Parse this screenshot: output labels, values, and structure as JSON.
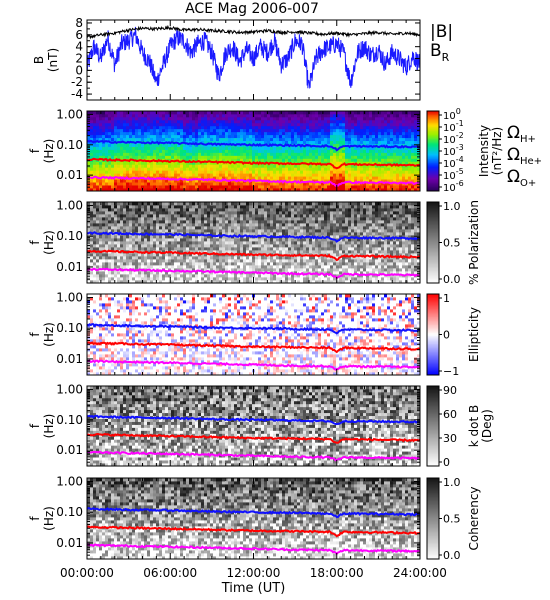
{
  "title": "ACE Mag 2006-007",
  "colors": {
    "B_total": "#000000",
    "B_R": "#1a1aff",
    "H": "#1010ff",
    "He": "#ff0000",
    "O": "#ff00ff"
  },
  "chart_data": {
    "type": "line",
    "title": "ACE Mag 2006-007",
    "x_label": "Time (UT)",
    "x_ticks": [
      "00:00:00",
      "06:00:00",
      "12:00:00",
      "18:00:00",
      "24:00:00"
    ],
    "x_range": [
      0,
      24
    ],
    "panels": [
      {
        "id": "field",
        "type": "line",
        "ylabel": [
          "B",
          "(nT)"
        ],
        "y_ticks": [
          "8",
          "6",
          "4",
          "2",
          "0",
          "-2",
          "-4"
        ],
        "ylim": [
          -5,
          8.5
        ],
        "legend": [
          "|B|",
          "B"
        ],
        "legend_sub": "R",
        "series": [
          {
            "name": "|B|",
            "points": [
              [
                0,
                5.6
              ],
              [
                1,
                6.0
              ],
              [
                2,
                6.3
              ],
              [
                3,
                6.8
              ],
              [
                4,
                7.1
              ],
              [
                5,
                7.0
              ],
              [
                6,
                7.2
              ],
              [
                7,
                6.8
              ],
              [
                8,
                6.9
              ],
              [
                9,
                6.7
              ],
              [
                10,
                6.6
              ],
              [
                11,
                6.4
              ],
              [
                12,
                6.5
              ],
              [
                13,
                6.7
              ],
              [
                14,
                6.4
              ],
              [
                15,
                6.5
              ],
              [
                16,
                6.3
              ],
              [
                17,
                6.1
              ],
              [
                18,
                6.3
              ],
              [
                19,
                6.0
              ],
              [
                20,
                6.2
              ],
              [
                21,
                6.4
              ],
              [
                22,
                6.1
              ],
              [
                23,
                6.3
              ],
              [
                24,
                6.0
              ]
            ]
          },
          {
            "name": "B_R",
            "points": [
              [
                0,
                0.5
              ],
              [
                0.5,
                4.0
              ],
              [
                1,
                2.0
              ],
              [
                1.5,
                5.5
              ],
              [
                2,
                1.0
              ],
              [
                2.5,
                4.5
              ],
              [
                3,
                5.0
              ],
              [
                3.5,
                6.0
              ],
              [
                4,
                3.0
              ],
              [
                4.5,
                1.5
              ],
              [
                5,
                -2.0
              ],
              [
                5.5,
                1.0
              ],
              [
                6,
                4.0
              ],
              [
                6.5,
                5.5
              ],
              [
                7,
                5.0
              ],
              [
                7.5,
                3.0
              ],
              [
                8,
                4.5
              ],
              [
                8.5,
                5.0
              ],
              [
                9,
                3.0
              ],
              [
                9.5,
                -1.0
              ],
              [
                10,
                3.0
              ],
              [
                10.5,
                4.0
              ],
              [
                11,
                1.5
              ],
              [
                11.5,
                3.5
              ],
              [
                12,
                2.0
              ],
              [
                12.5,
                4.0
              ],
              [
                13,
                3.0
              ],
              [
                13.5,
                5.0
              ],
              [
                14,
                1.0
              ],
              [
                14.5,
                2.0
              ],
              [
                15,
                5.0
              ],
              [
                15.5,
                4.5
              ],
              [
                16,
                -3.0
              ],
              [
                16.5,
                2.0
              ],
              [
                17,
                3.5
              ],
              [
                17.5,
                4.0
              ],
              [
                18,
                4.5
              ],
              [
                18.5,
                3.0
              ],
              [
                19,
                -2.0
              ],
              [
                19.5,
                3.0
              ],
              [
                20,
                4.0
              ],
              [
                20.5,
                2.5
              ],
              [
                21,
                3.5
              ],
              [
                21.5,
                1.0
              ],
              [
                22,
                3.0
              ],
              [
                22.5,
                2.0
              ],
              [
                23,
                0.5
              ],
              [
                23.5,
                2.5
              ],
              [
                24,
                1.0
              ]
            ]
          }
        ]
      },
      {
        "id": "intensity",
        "type": "heatmap",
        "ylabel": [
          "f",
          "(Hz)"
        ],
        "cbar_label": [
          "Intensity",
          "(nT²/Hz)"
        ],
        "cbar_ticks": [
          "10",
          "10",
          "10",
          "10",
          "10",
          "10",
          "10"
        ],
        "cbar_exps": [
          "0",
          "-1",
          "-2",
          "-3",
          "-4",
          "-5",
          "-6"
        ],
        "gyro_labels": [
          [
            "Ω",
            "H+"
          ],
          [
            "Ω",
            "He+"
          ],
          [
            "Ω",
            "O+"
          ]
        ]
      },
      {
        "id": "polarization",
        "type": "heatmap",
        "ylabel": [
          "f",
          "(Hz)"
        ],
        "cbar_label": [
          "% Polarization"
        ],
        "cbar_ticks": [
          "1.0",
          "0.5",
          "0.0"
        ]
      },
      {
        "id": "ellipticity",
        "type": "heatmap",
        "ylabel": [
          "f",
          "(Hz)"
        ],
        "cbar_label": [
          "Ellipticity"
        ],
        "cbar_ticks": [
          "1",
          "0",
          "−1"
        ]
      },
      {
        "id": "kdotb",
        "type": "heatmap",
        "ylabel": [
          "f",
          "(Hz)"
        ],
        "cbar_label": [
          "k dot B",
          "(Deg)"
        ],
        "cbar_ticks": [
          "90",
          "60",
          "30",
          "0"
        ]
      },
      {
        "id": "coherency",
        "type": "heatmap",
        "ylabel": [
          "f",
          "(Hz)"
        ],
        "cbar_label": [
          "Coherency"
        ],
        "cbar_ticks": [
          "1.0",
          "0.5",
          "0.0"
        ]
      }
    ],
    "freq_ticks": [
      "1.00",
      "0.10",
      "0.01"
    ],
    "freq_range_hz": [
      0.003,
      1.3
    ],
    "gyrofrequencies": [
      {
        "name": "ΩH+",
        "points": [
          [
            0,
            0.13
          ],
          [
            3,
            0.12
          ],
          [
            6,
            0.115
          ],
          [
            9,
            0.105
          ],
          [
            12,
            0.1
          ],
          [
            15,
            0.095
          ],
          [
            17.5,
            0.09
          ],
          [
            18,
            0.07
          ],
          [
            18.5,
            0.09
          ],
          [
            21,
            0.088
          ],
          [
            24,
            0.085
          ]
        ]
      },
      {
        "name": "ΩHe+",
        "points": [
          [
            0,
            0.033
          ],
          [
            3,
            0.031
          ],
          [
            6,
            0.029
          ],
          [
            9,
            0.027
          ],
          [
            12,
            0.025
          ],
          [
            15,
            0.024
          ],
          [
            17.5,
            0.023
          ],
          [
            18,
            0.017
          ],
          [
            18.5,
            0.023
          ],
          [
            21,
            0.022
          ],
          [
            24,
            0.021
          ]
        ]
      },
      {
        "name": "ΩO+",
        "points": [
          [
            0,
            0.0085
          ],
          [
            3,
            0.008
          ],
          [
            6,
            0.0075
          ],
          [
            9,
            0.007
          ],
          [
            12,
            0.0065
          ],
          [
            15,
            0.006
          ],
          [
            17.5,
            0.0058
          ],
          [
            18,
            0.0045
          ],
          [
            18.5,
            0.0058
          ],
          [
            21,
            0.0056
          ],
          [
            24,
            0.0054
          ]
        ]
      }
    ]
  }
}
